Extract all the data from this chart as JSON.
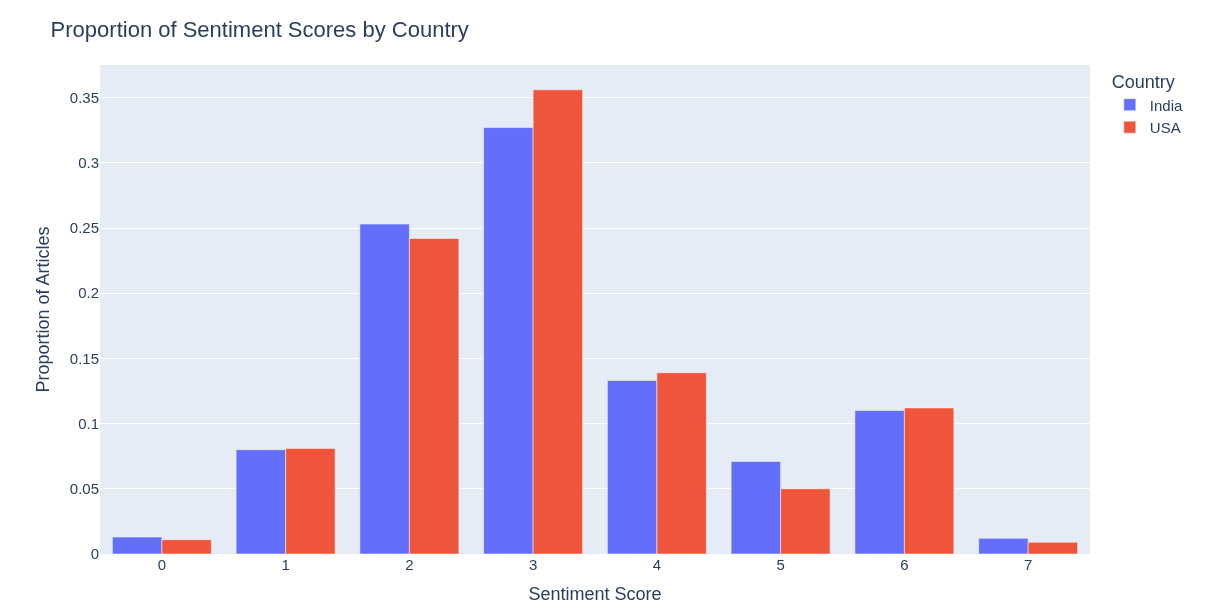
{
  "chart_data": {
    "type": "bar",
    "title": "Proportion of Sentiment Scores by Country",
    "xlabel": "Sentiment Score",
    "ylabel": "Proportion of Articles",
    "legend_title": "Country",
    "categories": [
      "0",
      "1",
      "2",
      "3",
      "4",
      "5",
      "6",
      "7"
    ],
    "series": [
      {
        "name": "India",
        "color": "#636efa",
        "values": [
          0.013,
          0.08,
          0.253,
          0.327,
          0.133,
          0.071,
          0.11,
          0.012
        ]
      },
      {
        "name": "USA",
        "color": "#ef553b",
        "values": [
          0.011,
          0.081,
          0.242,
          0.356,
          0.139,
          0.05,
          0.112,
          0.009
        ]
      }
    ],
    "ylim": [
      0,
      0.375
    ],
    "yticks": [
      0,
      0.05,
      0.1,
      0.15,
      0.2,
      0.25,
      0.3,
      0.35
    ],
    "grid": "y",
    "legend": "top right"
  }
}
